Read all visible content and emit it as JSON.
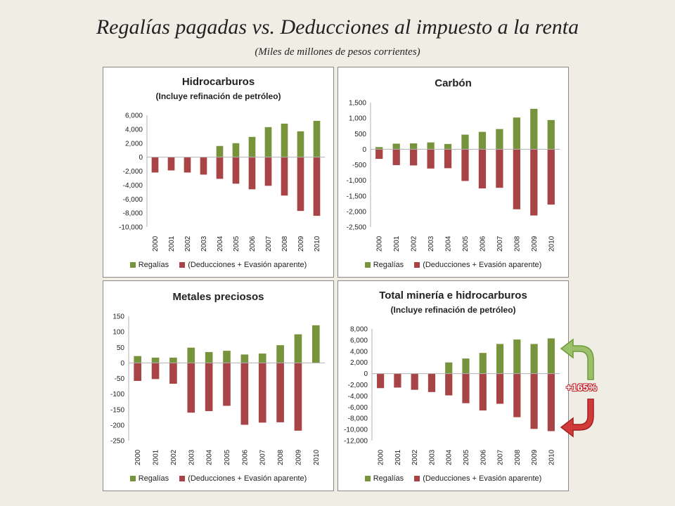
{
  "title": "Regalías pagadas vs. Deducciones al impuesto a la renta",
  "subtitle": "(Miles de millones de pesos corrientes)",
  "colors": {
    "regalias": "#77933c",
    "deducciones": "#a94446",
    "axis": "#b0b0b0"
  },
  "annotation": {
    "label": "+165%"
  },
  "chart_data": [
    {
      "type": "bar",
      "title": "Hidrocarburos",
      "subtitle": "(Incluye refinación de petróleo)",
      "categories": [
        "2000",
        "2001",
        "2002",
        "2003",
        "2004",
        "2005",
        "2006",
        "2007",
        "2008",
        "2009",
        "2010"
      ],
      "ylim": [
        -10000,
        6000
      ],
      "yticks": [
        6000,
        4000,
        2000,
        0,
        -2000,
        -4000,
        -6000,
        -8000,
        -10000
      ],
      "ytick_labels": [
        "6,000",
        "4,000",
        "2,000",
        "0",
        "-2,000",
        "-4,000",
        "-6,000",
        "-8,000",
        "-10,000"
      ],
      "series": [
        {
          "name": "Regalías",
          "values": [
            0,
            0,
            0,
            0,
            1600,
            2000,
            2900,
            4300,
            4800,
            3700,
            5200
          ]
        },
        {
          "name": "(Deducciones + Evasión aparente)",
          "values": [
            -2200,
            -1900,
            -2200,
            -2500,
            -3100,
            -3800,
            -4600,
            -4100,
            -5500,
            -7700,
            -8400
          ]
        }
      ]
    },
    {
      "type": "bar",
      "title": "Carbón",
      "subtitle": "",
      "categories": [
        "2000",
        "2001",
        "2002",
        "2003",
        "2004",
        "2005",
        "2006",
        "2007",
        "2008",
        "2009",
        "2010"
      ],
      "ylim": [
        -2500,
        1500
      ],
      "yticks": [
        1500,
        1000,
        500,
        0,
        -500,
        -1000,
        -1500,
        -2000,
        -2500
      ],
      "ytick_labels": [
        "1,500",
        "1,000",
        "500",
        "0",
        "-500",
        "-1,000",
        "-1,500",
        "-2,000",
        "-2,500"
      ],
      "series": [
        {
          "name": "Regalías",
          "values": [
            70,
            180,
            190,
            220,
            170,
            470,
            560,
            650,
            1020,
            1300,
            940
          ]
        },
        {
          "name": "(Deducciones + Evasión aparente)",
          "values": [
            -310,
            -510,
            -520,
            -620,
            -610,
            -1020,
            -1260,
            -1240,
            -1930,
            -2130,
            -1780
          ]
        }
      ]
    },
    {
      "type": "bar",
      "title": "Metales preciosos",
      "subtitle": "",
      "categories": [
        "2000",
        "2001",
        "2002",
        "2003",
        "2004",
        "2005",
        "2006",
        "2007",
        "2008",
        "2009",
        "2010"
      ],
      "ylim": [
        -250,
        150
      ],
      "yticks": [
        150,
        100,
        50,
        0,
        -50,
        -100,
        -150,
        -200,
        -250
      ],
      "ytick_labels": [
        "150",
        "100",
        "50",
        "0",
        "-50",
        "-100",
        "-150",
        "-200",
        "-250"
      ],
      "series": [
        {
          "name": "Regalías",
          "values": [
            22,
            17,
            17,
            49,
            35,
            39,
            27,
            30,
            57,
            92,
            121
          ]
        },
        {
          "name": "(Deducciones + Evasión aparente)",
          "values": [
            -58,
            -52,
            -67,
            -160,
            -155,
            -138,
            -199,
            -192,
            -191,
            -218,
            0
          ]
        }
      ]
    },
    {
      "type": "bar",
      "title": "Total minería e hidrocarburos",
      "subtitle": "(Incluye refinación de petróleo)",
      "categories": [
        "2000",
        "2001",
        "2002",
        "2003",
        "2004",
        "2005",
        "2006",
        "2007",
        "2008",
        "2009",
        "2010"
      ],
      "ylim": [
        -12000,
        8000
      ],
      "yticks": [
        8000,
        6000,
        4000,
        2000,
        0,
        -2000,
        -4000,
        -6000,
        -8000,
        -10000,
        -12000
      ],
      "ytick_labels": [
        "8,000",
        "6,000",
        "4,000",
        "2,000",
        "0",
        "-2,000",
        "-4,000",
        "-6,000",
        "-8,000",
        "-10,000",
        "-12,000"
      ],
      "series": [
        {
          "name": "Regalías",
          "values": [
            0,
            0,
            0,
            0,
            2000,
            2700,
            3700,
            5300,
            6100,
            5300,
            6300
          ]
        },
        {
          "name": "(Deducciones + Evasión aparente)",
          "values": [
            -2600,
            -2500,
            -2900,
            -3300,
            -3900,
            -5300,
            -6600,
            -5400,
            -7800,
            -9900,
            -10300
          ]
        }
      ]
    }
  ]
}
